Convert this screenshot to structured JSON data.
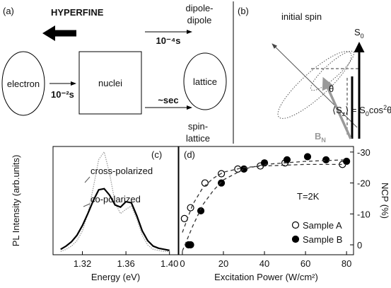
{
  "diagram_a": {
    "panel": "(a)",
    "hyperfine": "HYPERFINE",
    "electron": "electron",
    "nuclei": "nuclei",
    "lattice": "lattice",
    "dipole_top": "dipole-",
    "dipole_bottom": "dipole",
    "fast_time": "10⁻⁴s",
    "slow_time": "~sec",
    "spin_top": "spin-",
    "spin_bottom": "lattice",
    "electron_time": "10⁻²s"
  },
  "diagram_b": {
    "panel": "(b)",
    "initial": "initial spin",
    "s0": {
      "main": "S",
      "sub": "0"
    },
    "theta": "θ",
    "bn": {
      "main": "B",
      "sub": "N"
    },
    "formula": [
      "⟨S",
      "z",
      "⟩ = S",
      "0",
      "cos",
      "2",
      "θ"
    ]
  },
  "chart_data": [
    {
      "type": "line",
      "panel": "(c)",
      "x_label": "Energy (eV)",
      "y_label": "PL Intensity (arb.units)",
      "x": [
        1.3,
        1.305,
        1.31,
        1.315,
        1.32,
        1.325,
        1.33,
        1.335,
        1.34,
        1.345,
        1.35,
        1.355,
        1.36,
        1.365,
        1.37,
        1.375,
        1.38,
        1.385,
        1.39,
        1.395,
        1.4
      ],
      "xlim": [
        1.293,
        1.408
      ],
      "xticks": [
        1.32,
        1.36,
        {
          "value": 1.4,
          "label": "1.40"
        }
      ],
      "ylim": [
        0,
        1
      ],
      "series": [
        {
          "name": "cross-polarized",
          "color": "#999999",
          "style": "dotted",
          "values": [
            0.03,
            0.05,
            0.08,
            0.13,
            0.22,
            0.38,
            0.62,
            0.88,
            0.95,
            0.75,
            0.48,
            0.38,
            0.42,
            0.45,
            0.33,
            0.18,
            0.09,
            0.05,
            0.04,
            0.03,
            0.03
          ]
        },
        {
          "name": "co-polarized",
          "color": "#000000",
          "style": "solid",
          "values": [
            0.05,
            0.08,
            0.12,
            0.18,
            0.27,
            0.38,
            0.5,
            0.6,
            0.61,
            0.55,
            0.46,
            0.44,
            0.49,
            0.48,
            0.36,
            0.22,
            0.13,
            0.08,
            0.06,
            0.05,
            0.04
          ]
        }
      ]
    },
    {
      "type": "scatter",
      "panel": "(d)",
      "x_label": "Excitation Power (W/cm²)",
      "y_label": "NCP (%)",
      "annotation": "T=2K",
      "xlim": [
        -1.7,
        83.4
      ],
      "xticks": [
        0,
        20,
        40,
        60,
        80
      ],
      "ylim": [
        3.2,
        -31.8
      ],
      "yticks": [
        -30,
        -20,
        -10,
        0
      ],
      "y_axis_side": "right",
      "legend": "lower right",
      "series": [
        {
          "name": "Sample A",
          "color": "#000000",
          "marker": "open",
          "x": [
            1,
            4,
            11,
            19,
            27,
            38,
            50,
            78
          ],
          "values": [
            -8.5,
            -12,
            -20,
            -23,
            -24.5,
            -25.5,
            -26.5,
            -26
          ]
        },
        {
          "name": "Sample B",
          "color": "#000000",
          "marker": "filled",
          "x": [
            3,
            4,
            9,
            19,
            30,
            40,
            51,
            61,
            70,
            80
          ],
          "values": [
            0,
            0,
            -11,
            -20,
            -24.5,
            -26.5,
            -27.5,
            -28.5,
            -27.5,
            -27
          ]
        },
        {
          "color": "#333333",
          "style": "dashed",
          "x": [
            0,
            5,
            10,
            15,
            20,
            30,
            40,
            60,
            80
          ],
          "values": [
            -4,
            -13,
            -18.5,
            -21.5,
            -23.5,
            -25,
            -25.5,
            -26,
            -26
          ]
        },
        {
          "color": "#333333",
          "style": "dashed",
          "x": [
            0,
            5,
            10,
            15,
            20,
            30,
            40,
            60,
            80
          ],
          "values": [
            2,
            -6,
            -13,
            -17.5,
            -21,
            -24.5,
            -26,
            -27,
            -27.5
          ]
        }
      ]
    }
  ]
}
